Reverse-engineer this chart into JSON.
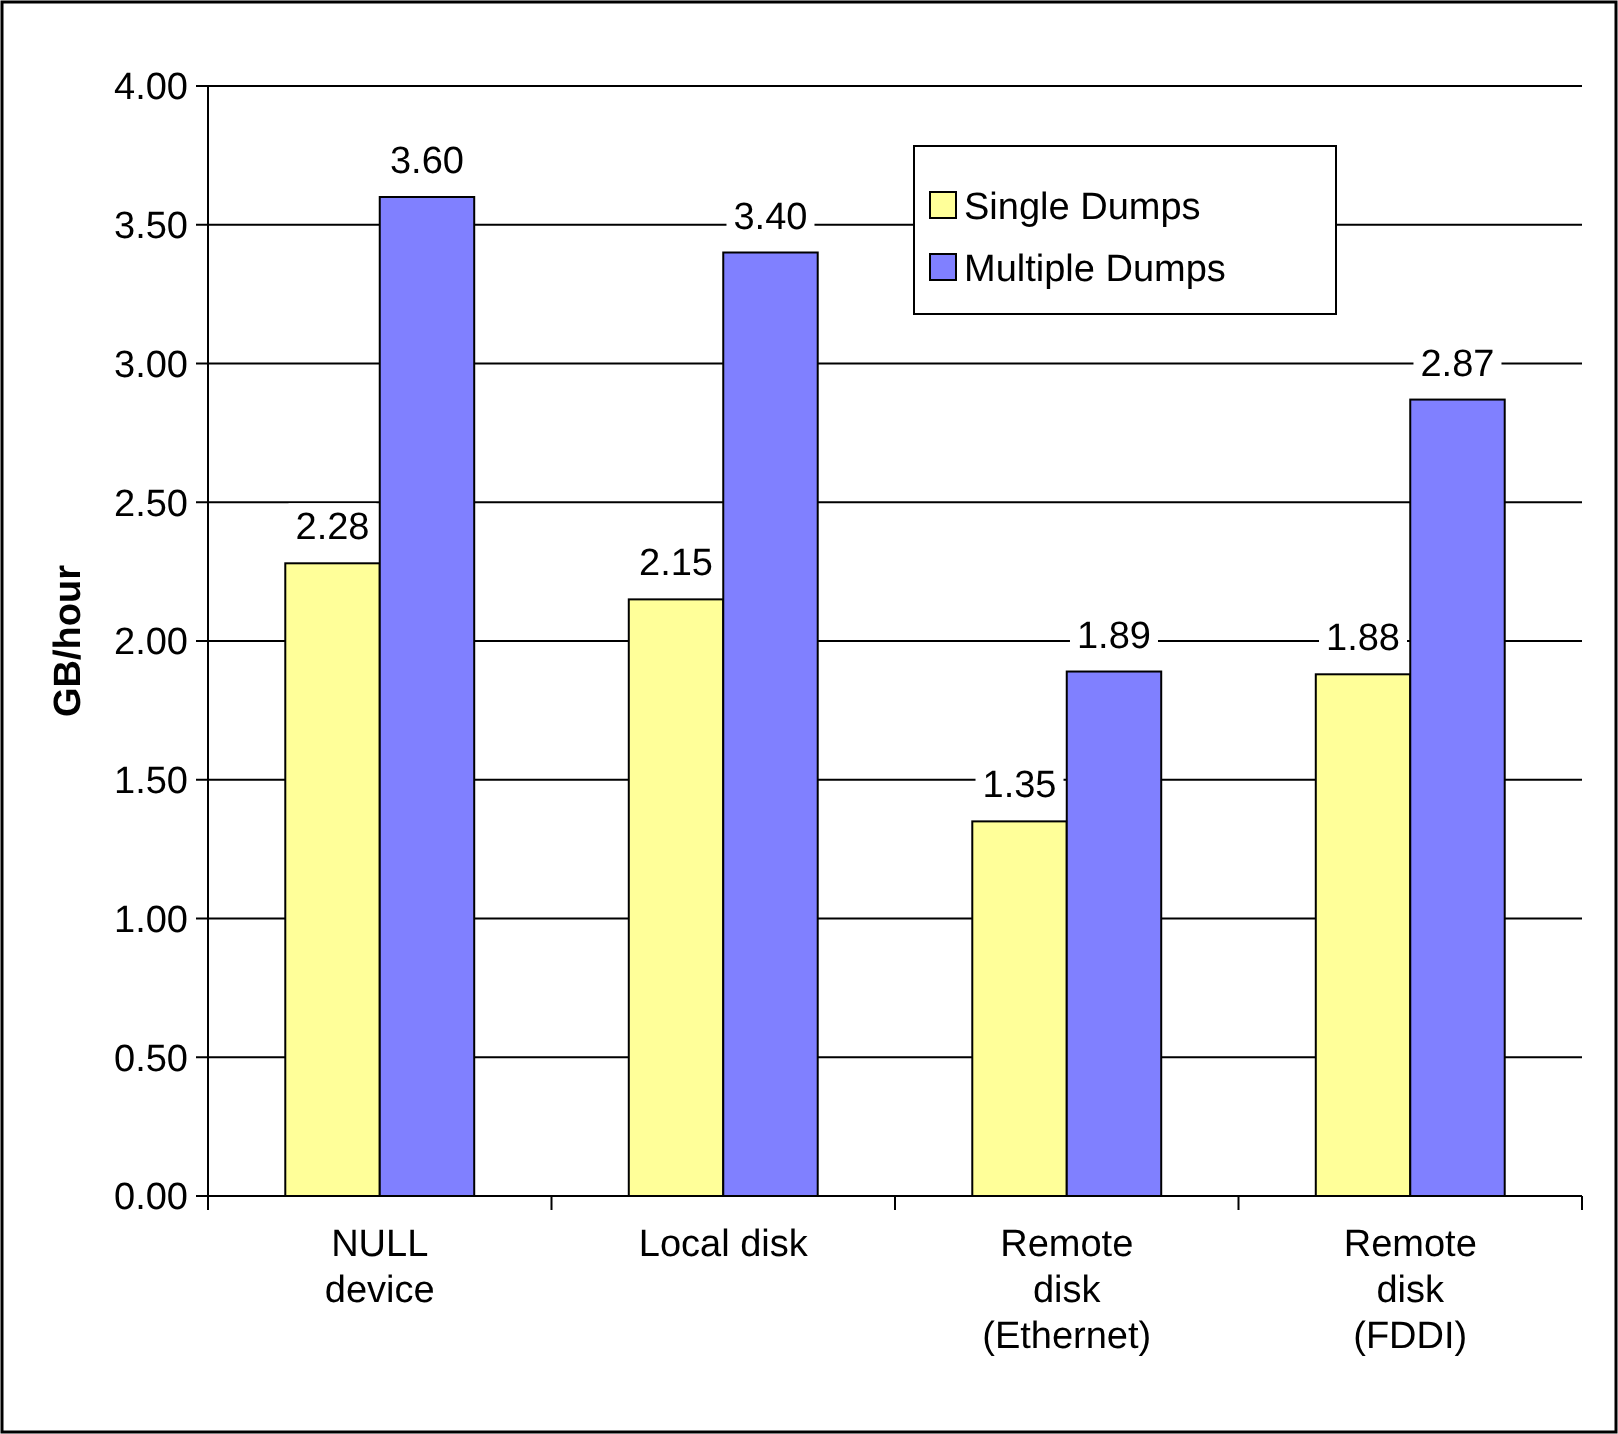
{
  "chart_data": {
    "type": "bar",
    "ylabel": "GB/hour",
    "categories": [
      "NULL\ndevice",
      "Local disk",
      "Remote\ndisk\n(Ethernet)",
      "Remote\ndisk\n(FDDI)"
    ],
    "series": [
      {
        "name": "Single Dumps",
        "color": "#ffff99",
        "values": [
          2.28,
          2.15,
          1.35,
          1.88
        ],
        "value_labels": [
          "2.28",
          "2.15",
          "1.35",
          "1.88"
        ]
      },
      {
        "name": "Multiple Dumps",
        "color": "#8080ff",
        "values": [
          3.6,
          3.4,
          1.89,
          2.87
        ],
        "value_labels": [
          "3.60",
          "3.40",
          "1.89",
          "2.87"
        ]
      }
    ],
    "ylim": [
      0,
      4
    ],
    "yticks": [
      {
        "value": 0,
        "label": "0.00"
      },
      {
        "value": 0.5,
        "label": "0.50"
      },
      {
        "value": 1,
        "label": "1.00"
      },
      {
        "value": 1.5,
        "label": "1.50"
      },
      {
        "value": 2,
        "label": "2.00"
      },
      {
        "value": 2.5,
        "label": "2.50"
      },
      {
        "value": 3,
        "label": "3.00"
      },
      {
        "value": 3.5,
        "label": "3.50"
      },
      {
        "value": 4,
        "label": "4.00"
      }
    ],
    "grid": "y",
    "legend": "top right"
  }
}
